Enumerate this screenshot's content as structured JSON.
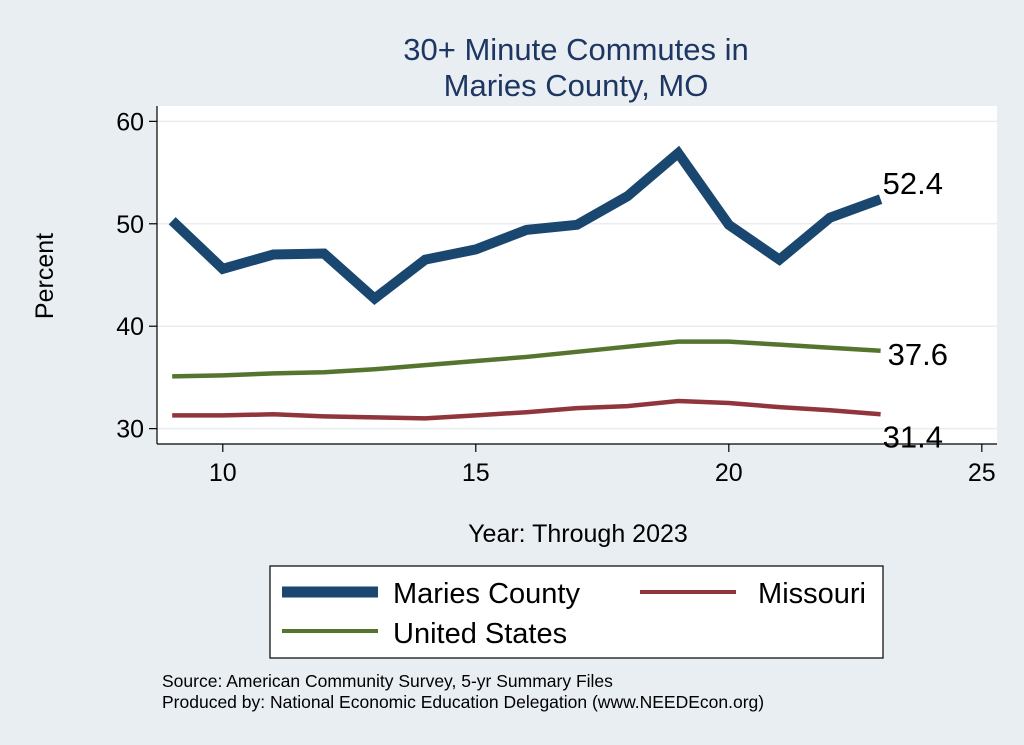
{
  "chart_data": {
    "type": "line",
    "title": [
      "30+ Minute Commutes in",
      "Maries County, MO"
    ],
    "xlabel": "Year: Through 2023",
    "ylabel": "Percent",
    "xlim": [
      8.7,
      25.3
    ],
    "ylim": [
      28.5,
      61.5
    ],
    "xticks": [
      10,
      15,
      20,
      25
    ],
    "yticks": [
      30,
      40,
      50,
      60
    ],
    "x": [
      9,
      10,
      11,
      12,
      13,
      14,
      15,
      16,
      17,
      18,
      19,
      20,
      21,
      22,
      23
    ],
    "series": [
      {
        "name": "Maries County",
        "color": "#1a476f",
        "values": [
          50.3,
          45.6,
          47.0,
          47.1,
          42.7,
          46.5,
          47.5,
          49.4,
          49.9,
          52.7,
          56.9,
          49.9,
          46.5,
          50.6,
          52.4
        ],
        "end_label": "52.4"
      },
      {
        "name": "United States",
        "color": "#55752f",
        "values": [
          35.1,
          35.2,
          35.4,
          35.5,
          35.8,
          36.2,
          36.6,
          37.0,
          37.5,
          38.0,
          38.5,
          38.5,
          38.2,
          37.9,
          37.6
        ],
        "end_label": "37.6"
      },
      {
        "name": "Missouri",
        "color": "#90353b",
        "values": [
          31.3,
          31.3,
          31.4,
          31.2,
          31.1,
          31.0,
          31.3,
          31.6,
          32.0,
          32.2,
          32.7,
          32.5,
          32.1,
          31.8,
          31.4
        ],
        "end_label": "31.4"
      }
    ],
    "legend_position": "bottom"
  },
  "source": {
    "line1": "Source: American Community Survey, 5-yr Summary Files",
    "line2": "Produced by: National Economic Education Delegation (www.NEEDEcon.org)"
  }
}
